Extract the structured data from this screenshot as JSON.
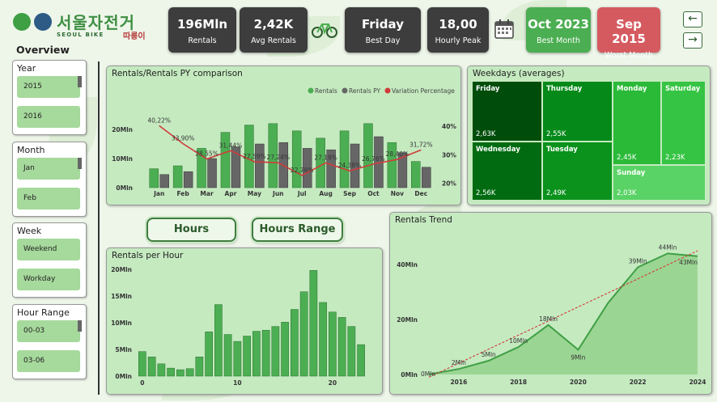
{
  "logo": {
    "korean": "서울자전거",
    "english": "SEOUL BIKE",
    "korean_small": "따릉이"
  },
  "kpis": [
    {
      "value": "196Mln",
      "label": "Rentals"
    },
    {
      "value": "2,42K",
      "label": "Avg Rentals"
    },
    {
      "value": "Friday",
      "label": "Best Day"
    },
    {
      "value": "18,00",
      "label": "Hourly Peak"
    },
    {
      "value": "Oct 2023",
      "label": "Best Month"
    },
    {
      "value": "Sep 2015",
      "label": "Worst Month"
    }
  ],
  "icons": {
    "bike": "bicycle-icon",
    "calendar": "calendar-icon",
    "back": "arrow-left-icon",
    "forward": "arrow-right-icon"
  },
  "sidebar": {
    "title": "Overview",
    "slicers": [
      {
        "title": "Year",
        "options": [
          "2015",
          "2016"
        ]
      },
      {
        "title": "Month",
        "options": [
          "Jan",
          "Feb"
        ]
      },
      {
        "title": "Week",
        "options": [
          "Weekend",
          "Workday"
        ]
      },
      {
        "title": "Hour Range",
        "options": [
          "00-03",
          "03-06"
        ]
      }
    ]
  },
  "buttons": {
    "hours": "Hours",
    "hours_range": "Hours Range"
  },
  "colors": {
    "bars": "#4cae52",
    "py_bars": "#666666",
    "variation": "#d23a3a",
    "kpi_dark": "#3d3d3d",
    "kpi_green": "#4cae52",
    "kpi_red": "#d55a60",
    "panel": "#c5eac0"
  },
  "chart_data": [
    {
      "type": "bar",
      "title": "Rentals/Rentals PY comparison",
      "legend": [
        "Rentals",
        "Rentals PY",
        "Variation Percentage"
      ],
      "legend_position": "top-right",
      "categories": [
        "Jan",
        "Feb",
        "Mar",
        "Apr",
        "May",
        "Jun",
        "Jul",
        "Aug",
        "Sep",
        "Oct",
        "Nov",
        "Dec"
      ],
      "series": [
        {
          "name": "Rentals",
          "values": [
            6.5,
            7.5,
            13.5,
            19,
            21.5,
            22,
            19.5,
            17,
            19.5,
            22,
            15.5,
            9
          ]
        },
        {
          "name": "Rentals PY",
          "values": [
            4.5,
            5.5,
            10,
            14,
            15,
            15.5,
            13.5,
            13,
            15,
            17.5,
            12,
            7
          ]
        },
        {
          "name": "Variation Percentage",
          "values": [
            40.22,
            33.9,
            28.55,
            31.44,
            27.59,
            27.24,
            22.78,
            27.19,
            24.38,
            26.76,
            28.4,
            31.72
          ]
        }
      ],
      "data_labels": [
        "40,22%",
        "33,90%",
        "28,55%",
        "31,44%",
        "27,59%",
        "27,24%",
        "22,78%",
        "27,19%",
        "24,38%",
        "26,76%",
        "28,40%",
        "31,72%"
      ],
      "y_ticks": [
        "0Mln",
        "10Mln",
        "20Mln"
      ],
      "y2_ticks": [
        "20%",
        "30%",
        "40%"
      ],
      "ylim": [
        0,
        25
      ],
      "y2lim": [
        18.5,
        44
      ]
    },
    {
      "type": "treemap",
      "title": "Weekdays (averages)",
      "items": [
        {
          "name": "Friday",
          "label": "2,63K",
          "color": "#004d0b"
        },
        {
          "name": "Thursday",
          "label": "2,55K",
          "color": "#058a1a"
        },
        {
          "name": "Wednesday",
          "label": "2,56K",
          "color": "#006b10"
        },
        {
          "name": "Tuesday",
          "label": "2,49K",
          "color": "#0a921c"
        },
        {
          "name": "Monday",
          "label": "2,45K",
          "color": "#2aba38"
        },
        {
          "name": "Saturday",
          "label": "2,23K",
          "color": "#35c443"
        },
        {
          "name": "Sunday",
          "label": "2,03K",
          "color": "#5ad366"
        }
      ]
    },
    {
      "type": "bar",
      "title": "Rentals per Hour",
      "x": [
        0,
        1,
        2,
        3,
        4,
        5,
        6,
        7,
        8,
        9,
        10,
        11,
        12,
        13,
        14,
        15,
        16,
        17,
        18,
        19,
        20,
        21,
        22,
        23
      ],
      "values": [
        4.6,
        3.6,
        2.3,
        1.5,
        1.2,
        1.4,
        3.6,
        8.3,
        13.4,
        7.8,
        6.5,
        7.5,
        8.4,
        8.6,
        9.3,
        10.1,
        12.5,
        15.8,
        19.8,
        13.8,
        12.0,
        11.0,
        9.3,
        5.9
      ],
      "x_ticks": [
        "0",
        "10",
        "20"
      ],
      "y_ticks": [
        "0Mln",
        "5Mln",
        "10Mln",
        "15Mln",
        "20Mln"
      ],
      "ylim": [
        0,
        20
      ]
    },
    {
      "type": "area",
      "title": "Rentals Trend",
      "x": [
        2015,
        2016,
        2017,
        2018,
        2019,
        2020,
        2021,
        2022,
        2023,
        2024
      ],
      "values": [
        0.05,
        2,
        5,
        10,
        18,
        9,
        26,
        39,
        44,
        43
      ],
      "data_labels": [
        "0Mln",
        "2Mln",
        "5Mln",
        "10Mln",
        "18Mln",
        "9Mln",
        "",
        "39Mln",
        "44Mln",
        "43Mln"
      ],
      "trendline": [
        -1,
        45
      ],
      "x_ticks": [
        "2016",
        "2018",
        "2020",
        "2022",
        "2024"
      ],
      "y_ticks": [
        "0Mln",
        "20Mln",
        "40Mln"
      ],
      "ylim": [
        0,
        50
      ]
    }
  ]
}
